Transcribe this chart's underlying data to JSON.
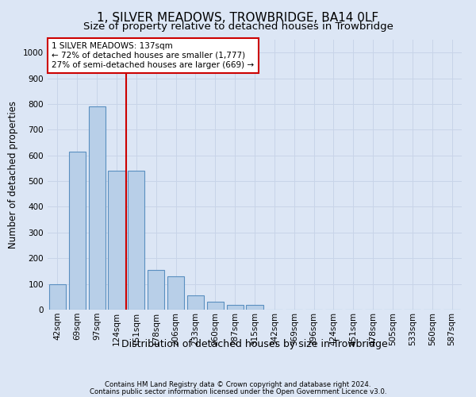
{
  "title": "1, SILVER MEADOWS, TROWBRIDGE, BA14 0LF",
  "subtitle": "Size of property relative to detached houses in Trowbridge",
  "xlabel": "Distribution of detached houses by size in Trowbridge",
  "ylabel": "Number of detached properties",
  "footnote1": "Contains HM Land Registry data © Crown copyright and database right 2024.",
  "footnote2": "Contains public sector information licensed under the Open Government Licence v3.0.",
  "bar_color": "#b8cfe8",
  "bar_edge_color": "#5a8fc0",
  "background_color": "#dce6f5",
  "categories": [
    "42sqm",
    "69sqm",
    "97sqm",
    "124sqm",
    "151sqm",
    "178sqm",
    "206sqm",
    "233sqm",
    "260sqm",
    "287sqm",
    "315sqm",
    "342sqm",
    "369sqm",
    "396sqm",
    "424sqm",
    "451sqm",
    "478sqm",
    "505sqm",
    "533sqm",
    "560sqm",
    "587sqm"
  ],
  "values": [
    100,
    615,
    790,
    540,
    540,
    155,
    130,
    55,
    30,
    20,
    20,
    0,
    0,
    0,
    0,
    0,
    0,
    0,
    0,
    0,
    0
  ],
  "property_label": "1 SILVER MEADOWS: 137sqm",
  "annotation_line1": "← 72% of detached houses are smaller (1,777)",
  "annotation_line2": "27% of semi-detached houses are larger (669) →",
  "red_line_color": "#cc0000",
  "annotation_box_color": "#ffffff",
  "annotation_box_edge_color": "#cc0000",
  "red_line_x": 3.48,
  "ylim": [
    0,
    1050
  ],
  "yticks": [
    0,
    100,
    200,
    300,
    400,
    500,
    600,
    700,
    800,
    900,
    1000
  ],
  "grid_color": "#c8d4e8",
  "title_fontsize": 11,
  "subtitle_fontsize": 9.5,
  "xlabel_fontsize": 9,
  "ylabel_fontsize": 8.5,
  "tick_fontsize": 7.5,
  "annotation_fontsize": 7.5
}
